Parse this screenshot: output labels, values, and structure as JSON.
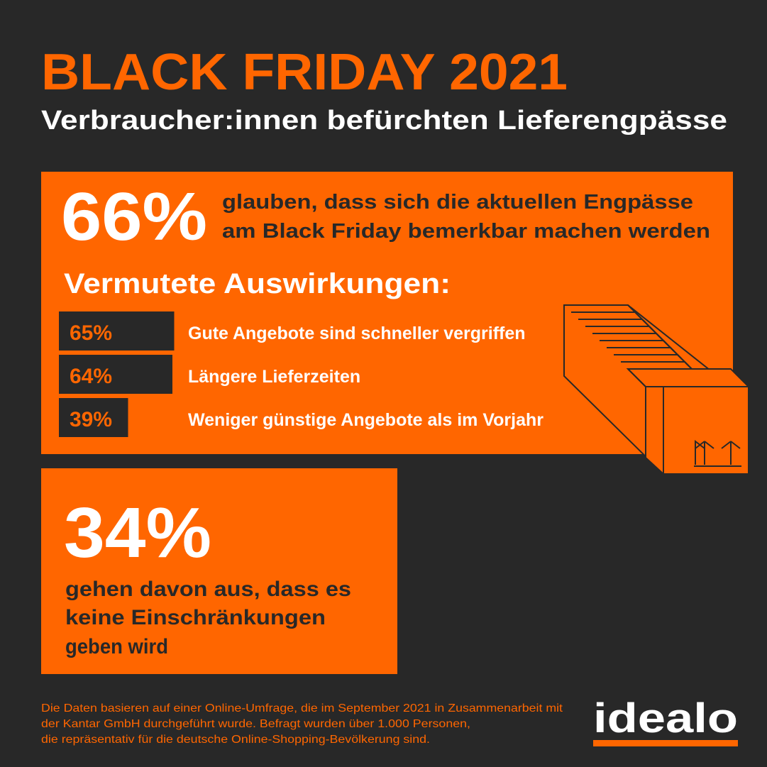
{
  "header": {
    "title": "BLACK FRIDAY 2021",
    "subtitle": "Verbraucher:innen befürchten Lieferengpässe"
  },
  "main": {
    "value_label": "66%",
    "lines": [
      "glauben, dass sich die aktuellen Engpässe",
      "am Black Friday bemerkbar machen werden"
    ]
  },
  "impacts": {
    "heading": "Vermutete Auswirkungen:",
    "values": [
      65,
      64,
      39
    ],
    "value_labels": [
      "65%",
      "64%",
      "39%"
    ],
    "categories": [
      "Gute Angebote sind schneller vergriffen",
      "Längere Lieferzeiten",
      "Weniger günstige Angebote als im Vorjahr"
    ]
  },
  "second": {
    "value_label": "34%",
    "lines": [
      "gehen davon aus, dass es",
      "keine Einschränkungen",
      "geben wird"
    ]
  },
  "footer": {
    "lines": [
      "Die Daten basieren auf einer Online-Umfrage, die im September 2021 in Zusammenarbeit mit",
      "der Kantar GmbH durchgeführt wurde. Befragt wurden über 1.000 Personen,",
      "die repräsentativ für die deutsche Online-Shopping-Bevölkerung sind."
    ],
    "logo": "idealo"
  }
}
